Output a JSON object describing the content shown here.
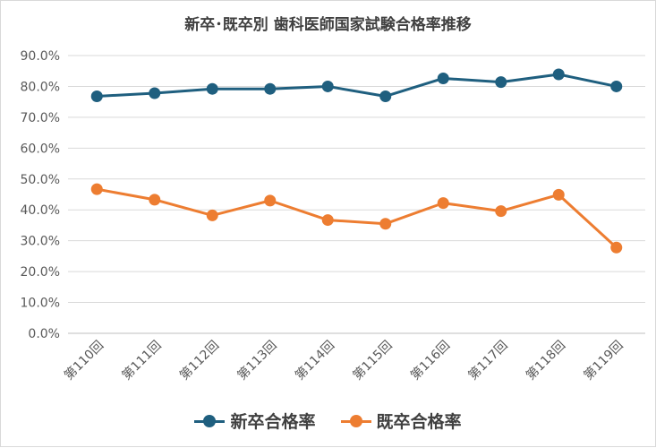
{
  "chart_data": {
    "type": "line",
    "title": "新卒･既卒別  歯科医師国家試験合格率推移",
    "categories": [
      "第110回",
      "第111回",
      "第112回",
      "第113回",
      "第114回",
      "第115回",
      "第116回",
      "第117回",
      "第118回",
      "第119回"
    ],
    "series": [
      {
        "name": "新卒合格率",
        "color": "#1f5f7f",
        "values": [
          76.8,
          77.8,
          79.2,
          79.2,
          80.0,
          76.8,
          82.6,
          81.4,
          83.9,
          80.0
        ]
      },
      {
        "name": "既卒合格率",
        "color": "#ed7d31",
        "values": [
          46.7,
          43.3,
          38.2,
          43.0,
          36.7,
          35.5,
          42.2,
          39.6,
          44.9,
          27.8
        ]
      }
    ],
    "yticks": [
      "0.0%",
      "10.0%",
      "20.0%",
      "30.0%",
      "40.0%",
      "50.0%",
      "60.0%",
      "70.0%",
      "80.0%",
      "90.0%"
    ],
    "ylim": [
      0,
      90
    ],
    "grid": true,
    "legend": "bottom"
  }
}
